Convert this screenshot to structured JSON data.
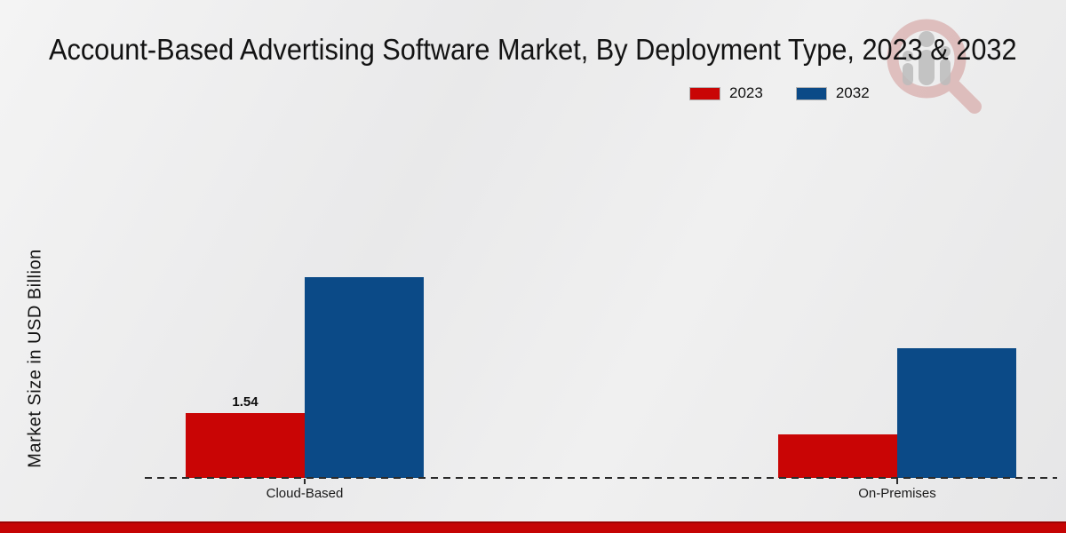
{
  "chart_data": {
    "type": "bar",
    "title": "Account-Based Advertising Software Market, By Deployment Type, 2023 & 2032",
    "categories": [
      "Cloud-Based",
      "On-Premises"
    ],
    "series": [
      {
        "name": "2023",
        "color": "#c90505",
        "values": [
          1.54,
          1.04
        ],
        "value_labels": [
          "1.54",
          ""
        ]
      },
      {
        "name": "2032",
        "color": "#0b4a87",
        "values": [
          4.77,
          3.08
        ],
        "value_labels": [
          "",
          ""
        ]
      }
    ],
    "xlabel": "",
    "ylabel": "Market Size in USD Billion",
    "ylim": [
      0,
      5.2
    ],
    "grid": false,
    "legend_position": "top-right",
    "axis_line_style": "dashed"
  },
  "watermark": {
    "icon": "magnifier-bar-chart-logo"
  },
  "footer": {
    "strip_color": "#c50404"
  },
  "colors": {
    "series_2023": "#c90505",
    "series_2032": "#0b4a87",
    "background": "#ededee",
    "footer_strip": "#c50404"
  }
}
